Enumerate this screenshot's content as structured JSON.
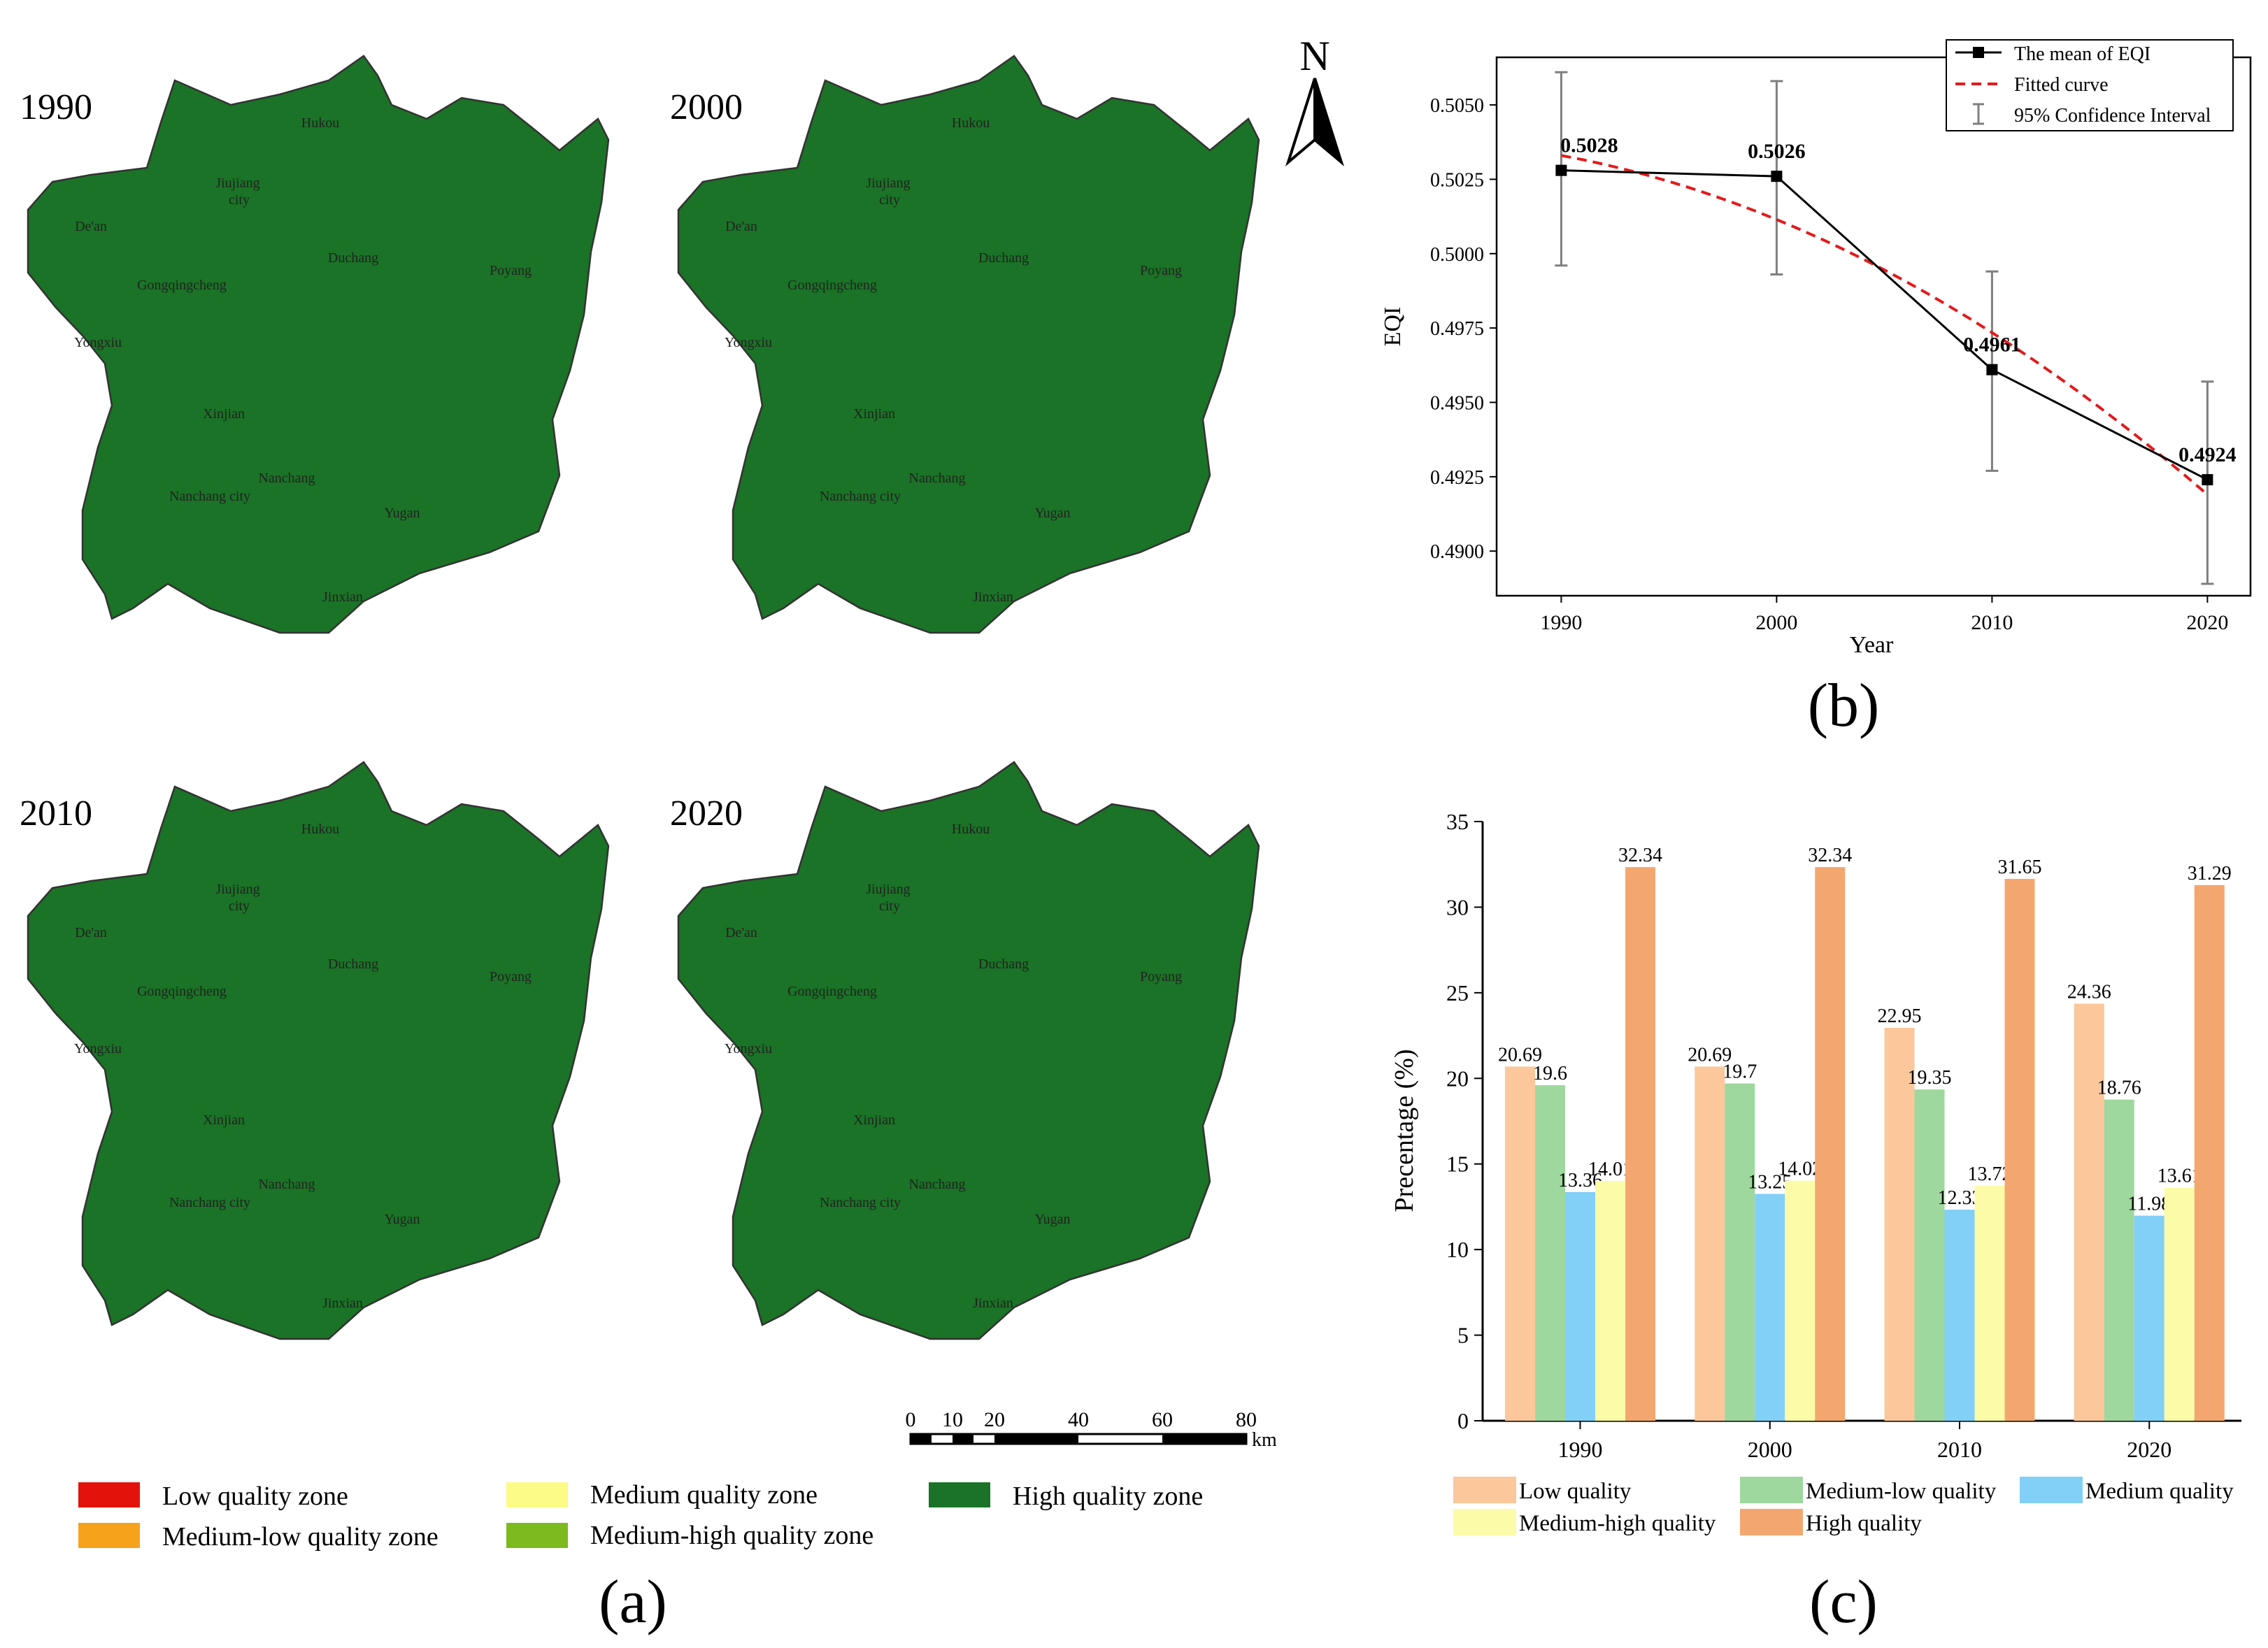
{
  "maps": {
    "years": [
      "1990",
      "2000",
      "2010",
      "2020"
    ],
    "place_labels": [
      "Hukou",
      "Jiujiang",
      "city",
      "De'an",
      "Duchang",
      "Poyang",
      "Gongqingcheng",
      "Yongxiu",
      "Xinjian",
      "Nanchang",
      "Nanchang city",
      "Yugan",
      "Jinxian"
    ],
    "north": "N",
    "scale_ticks": [
      "0",
      "10",
      "20",
      "40",
      "60",
      "80"
    ],
    "scale_unit": "km",
    "legend": [
      {
        "label": "Low quality zone",
        "color": "#e3120b"
      },
      {
        "label": "Medium-low quality zone",
        "color": "#f7a21b"
      },
      {
        "label": "Medium quality zone",
        "color": "#fbfb86"
      },
      {
        "label": "Medium-high quality zone",
        "color": "#7cba1e"
      },
      {
        "label": "High quality zone",
        "color": "#1a7326"
      }
    ],
    "panel_label": "(a)"
  },
  "chart_data": [
    {
      "type": "line",
      "panel_label": "(b)",
      "x": [
        1990,
        2000,
        2010,
        2020
      ],
      "series": [
        {
          "name": "The mean of EQI",
          "values": [
            0.5028,
            0.5026,
            0.4961,
            0.4924
          ]
        },
        {
          "name": "Fitted curve",
          "values": [
            0.5033,
            0.5012,
            0.4974,
            0.4919
          ]
        }
      ],
      "ci_95": {
        "lower": [
          0.4996,
          0.4993,
          0.4927,
          0.4889
        ],
        "upper": [
          0.5061,
          0.5058,
          0.4994,
          0.4957
        ]
      },
      "ci_label": "95% Confidence Interval",
      "data_labels": [
        "0.5028",
        "0.5026",
        "0.4961",
        "0.4924"
      ],
      "xlabel": "Year",
      "ylabel": "EQI",
      "xticks": [
        "1990",
        "2000",
        "2010",
        "2020"
      ],
      "yticks": [
        "0.4900",
        "0.4925",
        "0.4950",
        "0.4975",
        "0.5000",
        "0.5025",
        "0.5050"
      ],
      "xlim": [
        1987,
        2022
      ],
      "ylim": [
        0.4885,
        0.5066
      ],
      "legend_position": "top-right",
      "colors": {
        "mean": "#000000",
        "fit": "#e31a1c",
        "ci": "#7f7f7f"
      }
    },
    {
      "type": "bar",
      "panel_label": "(c)",
      "categories": [
        "1990",
        "2000",
        "2010",
        "2020"
      ],
      "series": [
        {
          "name": "Low quality",
          "color": "#fcc79a",
          "values": [
            20.69,
            20.69,
            22.95,
            24.36
          ],
          "labels": [
            "20.69",
            "20.69",
            "22.95",
            "24.36"
          ]
        },
        {
          "name": "Medium-low quality",
          "color": "#9ed89e",
          "values": [
            19.6,
            19.7,
            19.35,
            18.76
          ],
          "labels": [
            "19.6",
            "19.7",
            "19.35",
            "18.76"
          ]
        },
        {
          "name": "Medium quality",
          "color": "#82cff7",
          "values": [
            13.36,
            13.25,
            12.33,
            11.98
          ],
          "labels": [
            "13.36",
            "13.25",
            "12.33",
            "11.98"
          ]
        },
        {
          "name": "Medium-high quality",
          "color": "#fcfca8",
          "values": [
            14.01,
            14.02,
            13.72,
            13.61
          ],
          "labels": [
            "14.01",
            "14.02",
            "13.72",
            "13.61"
          ]
        },
        {
          "name": "High quality",
          "color": "#f3a76f",
          "values": [
            32.34,
            32.34,
            31.65,
            31.29
          ],
          "labels": [
            "32.34",
            "32.34",
            "31.65",
            "31.29"
          ]
        }
      ],
      "ylabel": "Precentage (%)",
      "yticks": [
        "0",
        "5",
        "10",
        "15",
        "20",
        "25",
        "30",
        "35"
      ],
      "ylim": [
        0,
        35
      ],
      "legend_position": "bottom"
    }
  ]
}
